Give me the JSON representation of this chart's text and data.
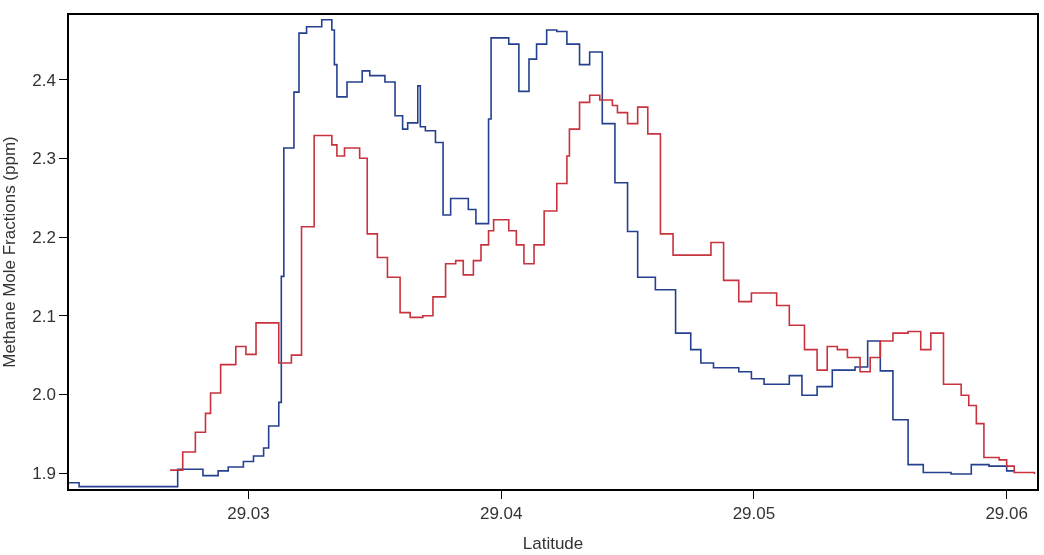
{
  "chart_data": {
    "type": "step",
    "xlabel": "Latitude",
    "ylabel": "Methane Mole Fractions (ppm)",
    "xlim": [
      29.0229,
      29.0612
    ],
    "ylim": [
      1.88,
      2.482
    ],
    "xticks": [
      29.03,
      29.04,
      29.05,
      29.06
    ],
    "yticks": [
      1.9,
      {
        "value": 2.0,
        "label": "2.0"
      },
      2.1,
      2.2,
      2.3,
      2.4
    ],
    "marker": "none",
    "line_style": "solid",
    "series": [
      {
        "color": "#24408e",
        "x": [
          29.0229,
          29.0233,
          29.0272,
          29.0282,
          29.0288,
          29.0292,
          29.0298,
          29.0302,
          29.0306,
          29.0308,
          29.0312,
          29.0313,
          29.0314,
          29.0318,
          29.032,
          29.0323,
          29.0329,
          29.0333,
          29.0334,
          29.0335,
          29.0339,
          29.0345,
          29.0348,
          29.0354,
          29.0358,
          29.0361,
          29.0363,
          29.0367,
          29.0368,
          29.037,
          29.0374,
          29.0377,
          29.038,
          29.0387,
          29.039,
          29.0395,
          29.0396,
          29.0403,
          29.0407,
          29.0411,
          29.0414,
          29.0418,
          29.0422,
          29.0426,
          29.0431,
          29.0435,
          29.044,
          29.0445,
          29.045,
          29.0454,
          29.0461,
          29.0469,
          29.0475,
          29.0479,
          29.0484,
          29.0494,
          29.0499,
          29.0504,
          29.0514,
          29.0519,
          29.0525,
          29.0531,
          29.054,
          29.0545,
          29.055,
          29.0555,
          29.0561,
          29.0567,
          29.0578,
          29.0586,
          29.0593,
          29.06,
          29.0603
        ],
        "values": [
          1.888,
          1.883,
          1.905,
          1.897,
          1.903,
          1.908,
          1.915,
          1.922,
          1.932,
          1.96,
          1.99,
          2.15,
          2.313,
          2.384,
          2.459,
          2.467,
          2.476,
          2.463,
          2.419,
          2.378,
          2.397,
          2.411,
          2.405,
          2.397,
          2.354,
          2.337,
          2.345,
          2.392,
          2.34,
          2.335,
          2.32,
          2.228,
          2.249,
          2.235,
          2.217,
          2.35,
          2.453,
          2.445,
          2.385,
          2.426,
          2.445,
          2.463,
          2.461,
          2.445,
          2.419,
          2.435,
          2.344,
          2.269,
          2.207,
          2.149,
          2.133,
          2.078,
          2.057,
          2.04,
          2.034,
          2.029,
          2.02,
          2.013,
          2.024,
          1.999,
          2.01,
          2.031,
          2.035,
          2.068,
          2.03,
          1.968,
          1.911,
          1.901,
          1.899,
          1.911,
          1.909,
          1.903,
          1.903
        ]
      },
      {
        "color": "#c8323c",
        "x": [
          29.0269,
          29.0274,
          29.0279,
          29.0283,
          29.0285,
          29.0289,
          29.0295,
          29.0299,
          29.0303,
          29.0312,
          29.0317,
          29.0321,
          29.0326,
          29.0333,
          29.0335,
          29.0338,
          29.0344,
          29.0347,
          29.0351,
          29.0355,
          29.036,
          29.0364,
          29.0369,
          29.0373,
          29.0378,
          29.0382,
          29.0385,
          29.0389,
          29.0392,
          29.0395,
          29.0397,
          29.0403,
          29.0406,
          29.0409,
          29.0413,
          29.0417,
          29.0422,
          29.0426,
          29.0427,
          29.0431,
          29.0435,
          29.0439,
          29.0444,
          29.0446,
          29.045,
          29.0454,
          29.0458,
          29.0463,
          29.0468,
          29.0483,
          29.0488,
          29.0494,
          29.0499,
          29.0509,
          29.0514,
          29.052,
          29.0525,
          29.0529,
          29.0533,
          29.0537,
          29.0542,
          29.0546,
          29.055,
          29.0555,
          29.0561,
          29.0566,
          29.057,
          29.0575,
          29.0582,
          29.0585,
          29.0588,
          29.0591,
          29.0597,
          29.06,
          29.0603,
          29.0611
        ],
        "values": [
          1.904,
          1.927,
          1.952,
          1.976,
          2.002,
          2.038,
          2.061,
          2.051,
          2.091,
          2.04,
          2.05,
          2.213,
          2.329,
          2.317,
          2.303,
          2.313,
          2.3,
          2.204,
          2.174,
          2.149,
          2.104,
          2.098,
          2.1,
          2.124,
          2.166,
          2.17,
          2.152,
          2.17,
          2.19,
          2.208,
          2.222,
          2.208,
          2.19,
          2.166,
          2.19,
          2.233,
          2.268,
          2.303,
          2.337,
          2.371,
          2.38,
          2.374,
          2.367,
          2.358,
          2.344,
          2.365,
          2.331,
          2.204,
          2.177,
          2.193,
          2.145,
          2.118,
          2.129,
          2.113,
          2.088,
          2.057,
          2.031,
          2.061,
          2.057,
          2.047,
          2.029,
          2.047,
          2.068,
          2.078,
          2.08,
          2.057,
          2.078,
          2.013,
          1.999,
          1.986,
          1.963,
          1.92,
          1.917,
          1.909,
          1.901,
          1.899
        ]
      }
    ]
  }
}
